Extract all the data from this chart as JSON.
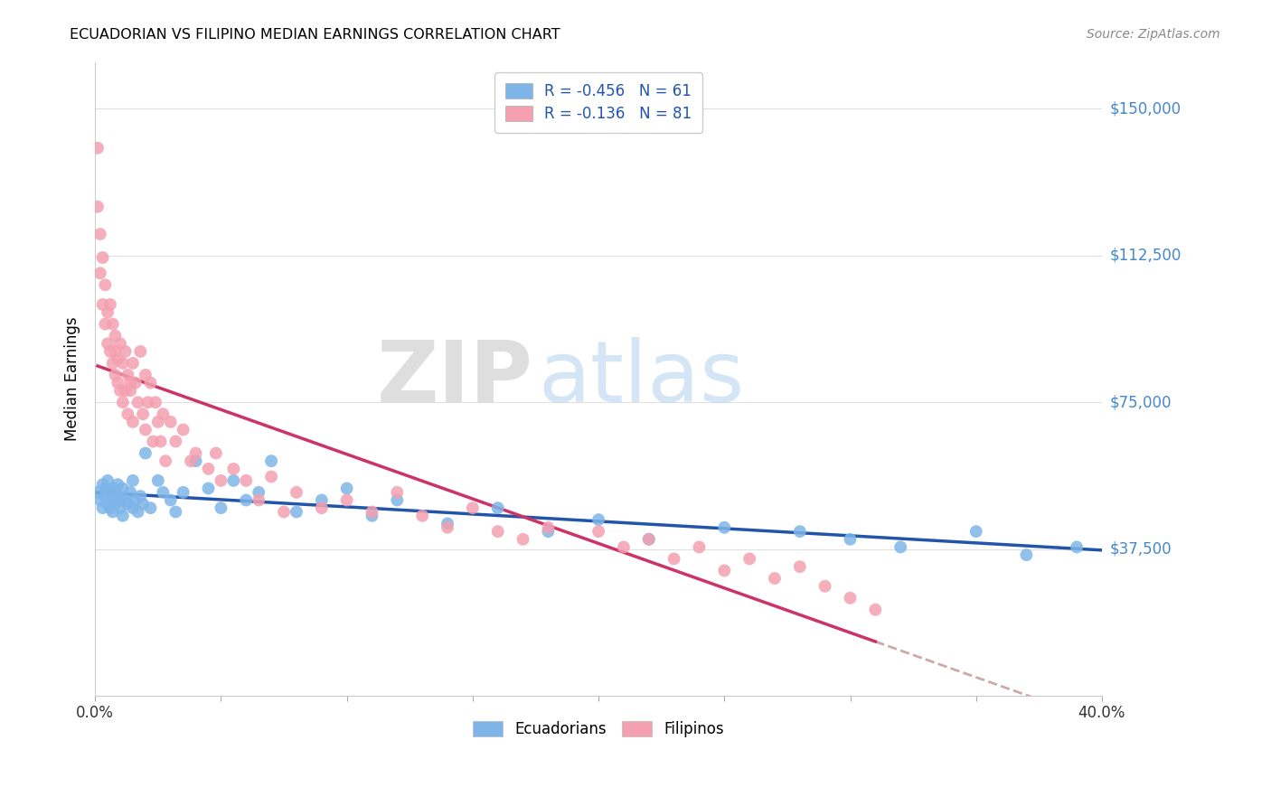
{
  "title": "ECUADORIAN VS FILIPINO MEDIAN EARNINGS CORRELATION CHART",
  "source": "Source: ZipAtlas.com",
  "ylabel": "Median Earnings",
  "yticks": [
    0,
    37500,
    75000,
    112500,
    150000
  ],
  "ytick_labels": [
    "",
    "$37,500",
    "$75,000",
    "$112,500",
    "$150,000"
  ],
  "xlim": [
    0.0,
    0.4
  ],
  "ylim": [
    0,
    162000
  ],
  "ecuadorian_color": "#7EB5E8",
  "filipino_color": "#F4A0B0",
  "trendline_ecuadorian_color": "#2255AA",
  "trendline_filipino_color": "#CC3366",
  "trendline_dashed_color": "#CCAAAA",
  "legend_label_ecuadorian": "Ecuadorians",
  "legend_label_filipino": "Filipinos",
  "r_ecuadorian": "-0.456",
  "n_ecuadorian": "61",
  "r_filipino": "-0.136",
  "n_filipino": "81",
  "watermark_zip": "ZIP",
  "watermark_atlas": "atlas",
  "ecuadorian_x": [
    0.001,
    0.002,
    0.003,
    0.003,
    0.004,
    0.004,
    0.005,
    0.005,
    0.006,
    0.006,
    0.007,
    0.007,
    0.007,
    0.008,
    0.008,
    0.009,
    0.009,
    0.01,
    0.01,
    0.011,
    0.011,
    0.012,
    0.013,
    0.014,
    0.015,
    0.015,
    0.016,
    0.017,
    0.018,
    0.019,
    0.02,
    0.022,
    0.025,
    0.027,
    0.03,
    0.032,
    0.035,
    0.04,
    0.045,
    0.05,
    0.055,
    0.06,
    0.065,
    0.07,
    0.08,
    0.09,
    0.1,
    0.11,
    0.12,
    0.14,
    0.16,
    0.18,
    0.2,
    0.22,
    0.25,
    0.28,
    0.3,
    0.32,
    0.35,
    0.37,
    0.39
  ],
  "ecuadorian_y": [
    52000,
    50000,
    54000,
    48000,
    51000,
    53000,
    49000,
    55000,
    52000,
    48000,
    53000,
    50000,
    47000,
    52000,
    49000,
    51000,
    54000,
    50000,
    48000,
    53000,
    46000,
    50000,
    49000,
    52000,
    48000,
    55000,
    50000,
    47000,
    51000,
    49000,
    62000,
    48000,
    55000,
    52000,
    50000,
    47000,
    52000,
    60000,
    53000,
    48000,
    55000,
    50000,
    52000,
    60000,
    47000,
    50000,
    53000,
    46000,
    50000,
    44000,
    48000,
    42000,
    45000,
    40000,
    43000,
    42000,
    40000,
    38000,
    42000,
    36000,
    38000
  ],
  "filipino_x": [
    0.001,
    0.001,
    0.002,
    0.002,
    0.003,
    0.003,
    0.004,
    0.004,
    0.005,
    0.005,
    0.006,
    0.006,
    0.007,
    0.007,
    0.008,
    0.008,
    0.008,
    0.009,
    0.009,
    0.01,
    0.01,
    0.011,
    0.011,
    0.012,
    0.012,
    0.013,
    0.013,
    0.014,
    0.014,
    0.015,
    0.015,
    0.016,
    0.017,
    0.018,
    0.019,
    0.02,
    0.02,
    0.021,
    0.022,
    0.023,
    0.024,
    0.025,
    0.026,
    0.027,
    0.028,
    0.03,
    0.032,
    0.035,
    0.038,
    0.04,
    0.045,
    0.048,
    0.05,
    0.055,
    0.06,
    0.065,
    0.07,
    0.075,
    0.08,
    0.09,
    0.1,
    0.11,
    0.12,
    0.13,
    0.14,
    0.15,
    0.16,
    0.17,
    0.18,
    0.2,
    0.21,
    0.22,
    0.23,
    0.24,
    0.25,
    0.26,
    0.27,
    0.28,
    0.29,
    0.3,
    0.31
  ],
  "filipino_y": [
    140000,
    125000,
    118000,
    108000,
    112000,
    100000,
    105000,
    95000,
    98000,
    90000,
    100000,
    88000,
    95000,
    85000,
    92000,
    82000,
    88000,
    86000,
    80000,
    90000,
    78000,
    85000,
    75000,
    88000,
    78000,
    82000,
    72000,
    78000,
    80000,
    85000,
    70000,
    80000,
    75000,
    88000,
    72000,
    82000,
    68000,
    75000,
    80000,
    65000,
    75000,
    70000,
    65000,
    72000,
    60000,
    70000,
    65000,
    68000,
    60000,
    62000,
    58000,
    62000,
    55000,
    58000,
    55000,
    50000,
    56000,
    47000,
    52000,
    48000,
    50000,
    47000,
    52000,
    46000,
    43000,
    48000,
    42000,
    40000,
    43000,
    42000,
    38000,
    40000,
    35000,
    38000,
    32000,
    35000,
    30000,
    33000,
    28000,
    25000,
    22000
  ]
}
